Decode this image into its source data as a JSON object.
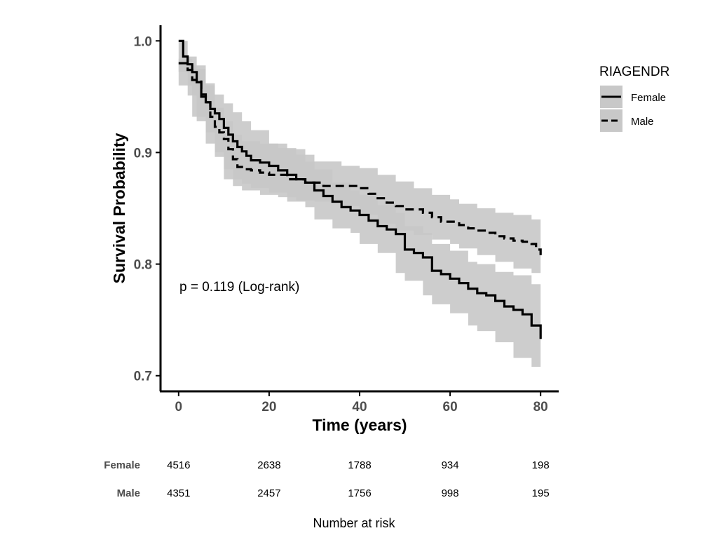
{
  "chart_data": {
    "type": "line",
    "title": "",
    "xlabel": "Time (years)",
    "ylabel": "Survival Probability",
    "xlim": [
      -4,
      84
    ],
    "ylim": [
      0.686,
      1.014
    ],
    "x_ticks": [
      0,
      20,
      40,
      60,
      80
    ],
    "y_ticks": [
      0.7,
      0.8,
      0.9,
      1.0
    ],
    "y_tick_labels": [
      "0.7",
      "0.8",
      "0.9",
      "1.0"
    ],
    "grid": false,
    "legend": {
      "title": "RIAGENDR",
      "position": "right",
      "entries": [
        "Female",
        "Male"
      ]
    },
    "annotation": "p = 0.119 (Log-rank)",
    "series": [
      {
        "name": "Female",
        "line_style": "solid",
        "color": "#000000",
        "band_color": "#c8c8c8",
        "points": [
          [
            0,
            1.0
          ],
          [
            1,
            0.986
          ],
          [
            2,
            0.979
          ],
          [
            3,
            0.972
          ],
          [
            4,
            0.963
          ],
          [
            5,
            0.95
          ],
          [
            6,
            0.945
          ],
          [
            7,
            0.939
          ],
          [
            8,
            0.935
          ],
          [
            9,
            0.93
          ],
          [
            10,
            0.922
          ],
          [
            11,
            0.916
          ],
          [
            12,
            0.91
          ],
          [
            13,
            0.905
          ],
          [
            14,
            0.901
          ],
          [
            15,
            0.897
          ],
          [
            16,
            0.893
          ],
          [
            18,
            0.891
          ],
          [
            20,
            0.888
          ],
          [
            22,
            0.884
          ],
          [
            24,
            0.88
          ],
          [
            26,
            0.876
          ],
          [
            28,
            0.873
          ],
          [
            30,
            0.866
          ],
          [
            32,
            0.861
          ],
          [
            34,
            0.856
          ],
          [
            36,
            0.851
          ],
          [
            38,
            0.848
          ],
          [
            40,
            0.844
          ],
          [
            42,
            0.839
          ],
          [
            44,
            0.834
          ],
          [
            46,
            0.831
          ],
          [
            48,
            0.827
          ],
          [
            50,
            0.813
          ],
          [
            52,
            0.81
          ],
          [
            54,
            0.806
          ],
          [
            56,
            0.794
          ],
          [
            58,
            0.791
          ],
          [
            60,
            0.787
          ],
          [
            62,
            0.783
          ],
          [
            64,
            0.778
          ],
          [
            66,
            0.774
          ],
          [
            68,
            0.772
          ],
          [
            70,
            0.767
          ],
          [
            72,
            0.762
          ],
          [
            74,
            0.759
          ],
          [
            76,
            0.755
          ],
          [
            78,
            0.745
          ],
          [
            80,
            0.733
          ]
        ],
        "lower": [
          [
            0,
            1.0
          ],
          [
            2,
            0.972
          ],
          [
            4,
            0.951
          ],
          [
            6,
            0.928
          ],
          [
            8,
            0.918
          ],
          [
            10,
            0.9
          ],
          [
            12,
            0.885
          ],
          [
            14,
            0.876
          ],
          [
            16,
            0.872
          ],
          [
            20,
            0.868
          ],
          [
            24,
            0.864
          ],
          [
            28,
            0.856
          ],
          [
            30,
            0.851
          ],
          [
            34,
            0.84
          ],
          [
            38,
            0.832
          ],
          [
            40,
            0.828
          ],
          [
            44,
            0.818
          ],
          [
            48,
            0.81
          ],
          [
            50,
            0.792
          ],
          [
            54,
            0.785
          ],
          [
            56,
            0.772
          ],
          [
            60,
            0.764
          ],
          [
            64,
            0.756
          ],
          [
            66,
            0.745
          ],
          [
            70,
            0.74
          ],
          [
            74,
            0.73
          ],
          [
            78,
            0.716
          ],
          [
            80,
            0.708
          ]
        ],
        "upper": [
          [
            0,
            1.0
          ],
          [
            2,
            0.986
          ],
          [
            4,
            0.975
          ],
          [
            6,
            0.962
          ],
          [
            8,
            0.952
          ],
          [
            10,
            0.944
          ],
          [
            12,
            0.936
          ],
          [
            14,
            0.928
          ],
          [
            16,
            0.92
          ],
          [
            20,
            0.908
          ],
          [
            24,
            0.903
          ],
          [
            28,
            0.892
          ],
          [
            30,
            0.885
          ],
          [
            34,
            0.873
          ],
          [
            38,
            0.866
          ],
          [
            40,
            0.862
          ],
          [
            44,
            0.853
          ],
          [
            48,
            0.846
          ],
          [
            50,
            0.834
          ],
          [
            54,
            0.828
          ],
          [
            56,
            0.818
          ],
          [
            60,
            0.812
          ],
          [
            64,
            0.802
          ],
          [
            66,
            0.8
          ],
          [
            70,
            0.793
          ],
          [
            74,
            0.79
          ],
          [
            78,
            0.782
          ],
          [
            80,
            0.778
          ]
        ]
      },
      {
        "name": "Male",
        "line_style": "dashed",
        "color": "#000000",
        "band_color": "#c8c8c8",
        "points": [
          [
            0,
            0.98
          ],
          [
            2,
            0.974
          ],
          [
            3,
            0.965
          ],
          [
            5,
            0.952
          ],
          [
            6,
            0.945
          ],
          [
            7,
            0.932
          ],
          [
            8,
            0.923
          ],
          [
            9,
            0.918
          ],
          [
            10,
            0.912
          ],
          [
            11,
            0.903
          ],
          [
            12,
            0.894
          ],
          [
            13,
            0.887
          ],
          [
            14,
            0.885
          ],
          [
            16,
            0.884
          ],
          [
            18,
            0.882
          ],
          [
            20,
            0.88
          ],
          [
            24,
            0.876
          ],
          [
            28,
            0.873
          ],
          [
            32,
            0.87
          ],
          [
            36,
            0.87
          ],
          [
            40,
            0.868
          ],
          [
            42,
            0.863
          ],
          [
            44,
            0.859
          ],
          [
            46,
            0.855
          ],
          [
            48,
            0.852
          ],
          [
            50,
            0.849
          ],
          [
            54,
            0.846
          ],
          [
            56,
            0.842
          ],
          [
            58,
            0.838
          ],
          [
            62,
            0.835
          ],
          [
            64,
            0.832
          ],
          [
            66,
            0.83
          ],
          [
            68,
            0.828
          ],
          [
            70,
            0.825
          ],
          [
            72,
            0.823
          ],
          [
            74,
            0.821
          ],
          [
            76,
            0.82
          ],
          [
            78,
            0.818
          ],
          [
            79,
            0.813
          ],
          [
            80,
            0.808
          ]
        ],
        "lower": [
          [
            0,
            0.98
          ],
          [
            3,
            0.96
          ],
          [
            6,
            0.932
          ],
          [
            8,
            0.908
          ],
          [
            10,
            0.896
          ],
          [
            12,
            0.876
          ],
          [
            14,
            0.87
          ],
          [
            18,
            0.866
          ],
          [
            22,
            0.862
          ],
          [
            26,
            0.86
          ],
          [
            30,
            0.857
          ],
          [
            36,
            0.856
          ],
          [
            40,
            0.852
          ],
          [
            44,
            0.844
          ],
          [
            48,
            0.836
          ],
          [
            52,
            0.83
          ],
          [
            56,
            0.826
          ],
          [
            60,
            0.822
          ],
          [
            62,
            0.818
          ],
          [
            66,
            0.814
          ],
          [
            70,
            0.808
          ],
          [
            74,
            0.802
          ],
          [
            78,
            0.796
          ],
          [
            80,
            0.792
          ]
        ],
        "upper": [
          [
            0,
            0.984
          ],
          [
            3,
            0.978
          ],
          [
            6,
            0.96
          ],
          [
            8,
            0.94
          ],
          [
            10,
            0.928
          ],
          [
            12,
            0.916
          ],
          [
            14,
            0.91
          ],
          [
            18,
            0.908
          ],
          [
            22,
            0.904
          ],
          [
            26,
            0.898
          ],
          [
            30,
            0.892
          ],
          [
            36,
            0.888
          ],
          [
            40,
            0.886
          ],
          [
            44,
            0.88
          ],
          [
            48,
            0.874
          ],
          [
            52,
            0.868
          ],
          [
            56,
            0.862
          ],
          [
            60,
            0.858
          ],
          [
            62,
            0.854
          ],
          [
            66,
            0.85
          ],
          [
            70,
            0.846
          ],
          [
            74,
            0.844
          ],
          [
            78,
            0.84
          ],
          [
            80,
            0.84
          ]
        ]
      }
    ],
    "risk_table": {
      "title": "Number at risk",
      "times": [
        0,
        20,
        40,
        60,
        80
      ],
      "rows": [
        {
          "name": "Female",
          "values": [
            "4516",
            "2638",
            "1788",
            "934",
            "198"
          ]
        },
        {
          "name": "Male",
          "values": [
            "4351",
            "2457",
            "1756",
            "998",
            "195"
          ]
        }
      ]
    }
  }
}
